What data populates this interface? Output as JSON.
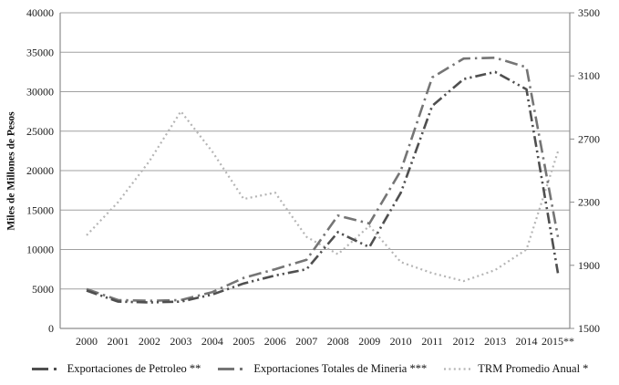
{
  "chart_data": {
    "type": "line",
    "title": "",
    "ylabel": "Miles de Millones de Pesos",
    "categories": [
      "2000",
      "2001",
      "2002",
      "2003",
      "2004",
      "2005",
      "2006",
      "2007",
      "2008",
      "2009",
      "2010",
      "2011",
      "2012",
      "2013",
      "2014",
      "2015**"
    ],
    "left_axis": {
      "label": "Miles de Millones de Pesos",
      "min": 0,
      "max": 40000,
      "ticks": [
        0,
        5000,
        10000,
        15000,
        20000,
        25000,
        30000,
        35000,
        40000
      ]
    },
    "right_axis": {
      "min": 1500,
      "max": 3500,
      "ticks": [
        1500,
        1900,
        2300,
        2700,
        3100,
        3500
      ]
    },
    "grid": true,
    "legend_position": "bottom",
    "series": [
      {
        "name": "Exportaciones de Petroleo **",
        "axis": "left",
        "line_style": "dash-dot-dot",
        "color": "#4f4f4f",
        "values": [
          4800,
          3400,
          3300,
          3400,
          4300,
          5700,
          6700,
          7500,
          12200,
          10300,
          17200,
          28200,
          31600,
          32500,
          30300,
          7000
        ]
      },
      {
        "name": "Exportaciones Totales de Mineria ***",
        "axis": "left",
        "line_style": "dash-dot",
        "color": "#757575",
        "values": [
          5000,
          3600,
          3500,
          3600,
          4600,
          6400,
          7500,
          8700,
          14300,
          13300,
          20000,
          31800,
          34200,
          34300,
          33100,
          11600
        ]
      },
      {
        "name": "TRM Promedio Anual *",
        "axis": "right",
        "line_style": "dotted",
        "color": "#b5b5b5",
        "values": [
          2090,
          2300,
          2560,
          2875,
          2620,
          2320,
          2360,
          2080,
          1970,
          2150,
          1920,
          1850,
          1800,
          1870,
          2000,
          2620
        ]
      }
    ]
  },
  "colors": {
    "background": "#ffffff",
    "gridline": "#a0a0a0",
    "axis": "#8c8c8c",
    "text": "#1a1a1a"
  }
}
